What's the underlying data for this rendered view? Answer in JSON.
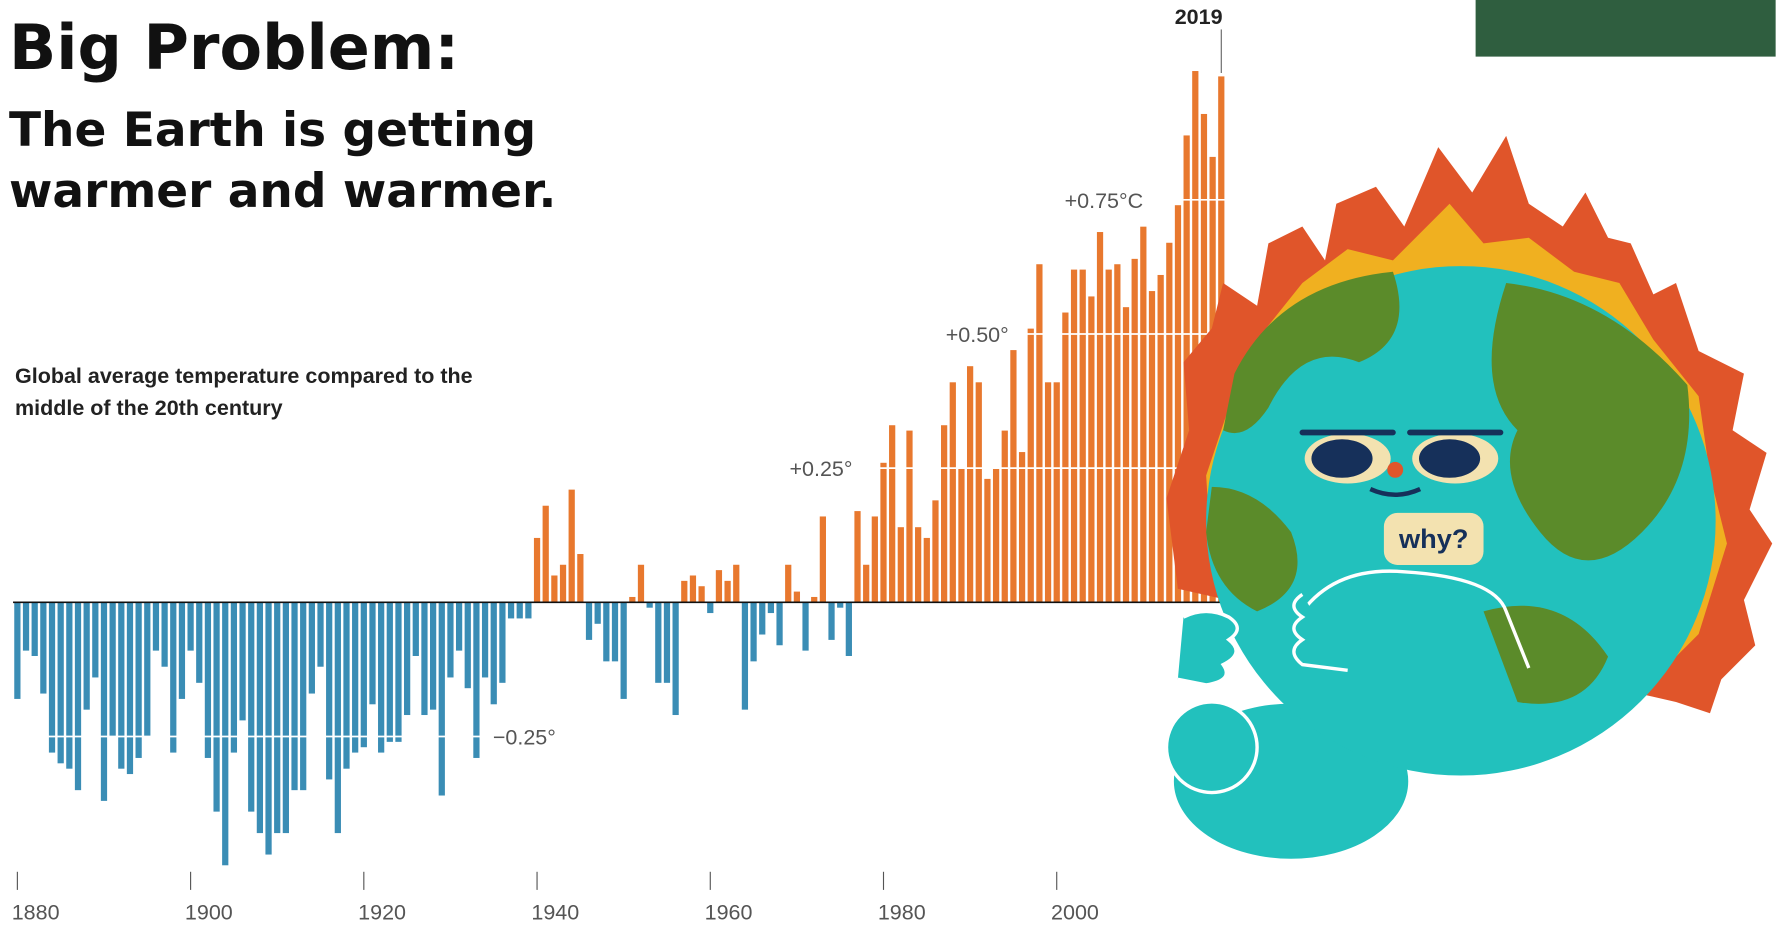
{
  "slide": {
    "title": "Big Problem:",
    "subtitle": "The Earth is getting warmer and warmer.",
    "illustration_text": "why?"
  },
  "chart_data": {
    "type": "bar",
    "title": "Global average temperature compared to the middle of the 20th century",
    "annotation": "2019",
    "x": [
      1880,
      1881,
      1882,
      1883,
      1884,
      1885,
      1886,
      1887,
      1888,
      1889,
      1890,
      1891,
      1892,
      1893,
      1894,
      1895,
      1896,
      1897,
      1898,
      1899,
      1900,
      1901,
      1902,
      1903,
      1904,
      1905,
      1906,
      1907,
      1908,
      1909,
      1910,
      1911,
      1912,
      1913,
      1914,
      1915,
      1916,
      1917,
      1918,
      1919,
      1920,
      1921,
      1922,
      1923,
      1924,
      1925,
      1926,
      1927,
      1928,
      1929,
      1930,
      1931,
      1932,
      1933,
      1934,
      1935,
      1936,
      1937,
      1938,
      1939,
      1940,
      1941,
      1942,
      1943,
      1944,
      1945,
      1946,
      1947,
      1948,
      1949,
      1950,
      1951,
      1952,
      1953,
      1954,
      1955,
      1956,
      1957,
      1958,
      1959,
      1960,
      1961,
      1962,
      1963,
      1964,
      1965,
      1966,
      1967,
      1968,
      1969,
      1970,
      1971,
      1972,
      1973,
      1974,
      1975,
      1976,
      1977,
      1978,
      1979,
      1980,
      1981,
      1982,
      1983,
      1984,
      1985,
      1986,
      1987,
      1988,
      1989,
      1990,
      1991,
      1992,
      1993,
      1994,
      1995,
      1996,
      1997,
      1998,
      1999,
      2000,
      2001,
      2002,
      2003,
      2004,
      2005,
      2006,
      2007,
      2008,
      2009,
      2010,
      2011,
      2012,
      2013,
      2014,
      2015,
      2016,
      2017,
      2018,
      2019
    ],
    "values": [
      -0.18,
      -0.09,
      -0.1,
      -0.17,
      -0.28,
      -0.3,
      -0.31,
      -0.35,
      -0.2,
      -0.14,
      -0.37,
      -0.25,
      -0.31,
      -0.32,
      -0.29,
      -0.25,
      -0.09,
      -0.12,
      -0.28,
      -0.18,
      -0.09,
      -0.15,
      -0.29,
      -0.39,
      -0.49,
      -0.28,
      -0.22,
      -0.39,
      -0.43,
      -0.47,
      -0.43,
      -0.43,
      -0.35,
      -0.35,
      -0.17,
      -0.12,
      -0.33,
      -0.43,
      -0.31,
      -0.28,
      -0.27,
      -0.19,
      -0.28,
      -0.26,
      -0.26,
      -0.21,
      -0.1,
      -0.21,
      -0.2,
      -0.36,
      -0.14,
      -0.09,
      -0.16,
      -0.29,
      -0.14,
      -0.19,
      -0.15,
      -0.03,
      -0.03,
      -0.03,
      0.12,
      0.18,
      0.05,
      0.07,
      0.21,
      0.09,
      -0.07,
      -0.04,
      -0.11,
      -0.11,
      -0.18,
      0.01,
      0.07,
      -0.01,
      -0.15,
      -0.15,
      -0.21,
      0.04,
      0.05,
      0.03,
      -0.02,
      0.06,
      0.04,
      0.07,
      -0.2,
      -0.11,
      -0.06,
      -0.02,
      -0.08,
      0.07,
      0.02,
      -0.09,
      0.01,
      0.16,
      -0.07,
      -0.01,
      -0.1,
      0.17,
      0.07,
      0.16,
      0.26,
      0.33,
      0.14,
      0.32,
      0.14,
      0.12,
      0.19,
      0.33,
      0.41,
      0.25,
      0.44,
      0.41,
      0.23,
      0.25,
      0.32,
      0.47,
      0.28,
      0.51,
      0.63,
      0.41,
      0.41,
      0.54,
      0.62,
      0.62,
      0.57,
      0.69,
      0.62,
      0.63,
      0.55,
      0.64,
      0.7,
      0.58,
      0.61,
      0.67,
      0.74,
      0.87,
      0.99,
      0.91,
      0.83,
      0.98
    ],
    "colors": {
      "positive": "#e8782e",
      "negative": "#3a8db5"
    },
    "xlim": [
      1879.5,
      2019.5
    ],
    "xticks": [
      1880,
      1900,
      1920,
      1940,
      1960,
      1980,
      2000
    ],
    "ylim": [
      -0.5,
      1.0
    ],
    "yticks": [
      {
        "value": -0.25,
        "label": "−0.25°"
      },
      {
        "value": 0.25,
        "label": "+0.25°"
      },
      {
        "value": 0.5,
        "label": "+0.50°"
      },
      {
        "value": 0.75,
        "label": "+0.75°C"
      }
    ],
    "grid": true
  }
}
